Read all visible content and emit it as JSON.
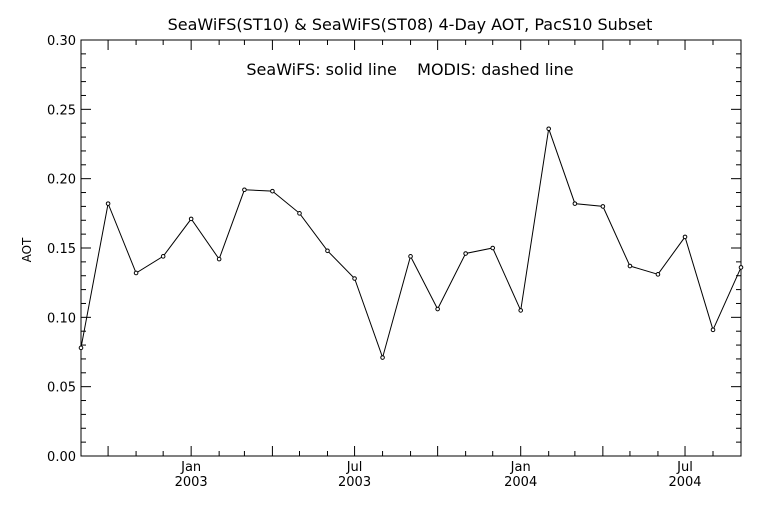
{
  "chart_data": {
    "type": "line",
    "title": "SeaWiFS(ST10) & SeaWiFS(ST08) 4-Day AOT, PacS10 Subset",
    "annotation": "SeaWiFS: solid line    MODIS: dashed line",
    "ylabel": "AOT",
    "xlabel": "",
    "ylim": [
      0.0,
      0.3
    ],
    "y_ticks": [
      "0.00",
      "0.05",
      "0.10",
      "0.15",
      "0.20",
      "0.25",
      "0.30"
    ],
    "xlim": [
      "2002-09-01",
      "2004-09-01"
    ],
    "x_ticks": [
      {
        "date": "2003-01-01",
        "label_top": "Jan",
        "label_bottom": "2003"
      },
      {
        "date": "2003-07-01",
        "label_top": "Jul",
        "label_bottom": "2003"
      },
      {
        "date": "2004-01-01",
        "label_top": "Jan",
        "label_bottom": "2004"
      },
      {
        "date": "2004-07-01",
        "label_top": "Jul",
        "label_bottom": "2004"
      }
    ],
    "grid": false,
    "series": [
      {
        "style": "solid",
        "x": [
          "2002-09-01",
          "2002-10-01",
          "2002-11-01",
          "2002-12-01",
          "2003-01-01",
          "2003-02-01",
          "2003-03-01",
          "2003-04-01",
          "2003-05-01",
          "2003-06-01",
          "2003-07-01",
          "2003-08-01",
          "2003-09-01",
          "2003-10-01",
          "2003-11-01",
          "2003-12-01",
          "2004-01-01",
          "2004-02-01",
          "2004-03-01",
          "2004-04-01",
          "2004-05-01",
          "2004-06-01",
          "2004-07-01",
          "2004-08-01",
          "2004-09-01"
        ],
        "values": [
          0.078,
          0.182,
          0.132,
          0.144,
          0.171,
          0.142,
          0.192,
          0.191,
          0.175,
          0.148,
          0.128,
          0.071,
          0.144,
          0.106,
          0.146,
          0.15,
          0.105,
          0.236,
          0.182,
          0.18,
          0.137,
          0.131,
          0.158,
          0.091,
          0.136
        ]
      }
    ]
  }
}
